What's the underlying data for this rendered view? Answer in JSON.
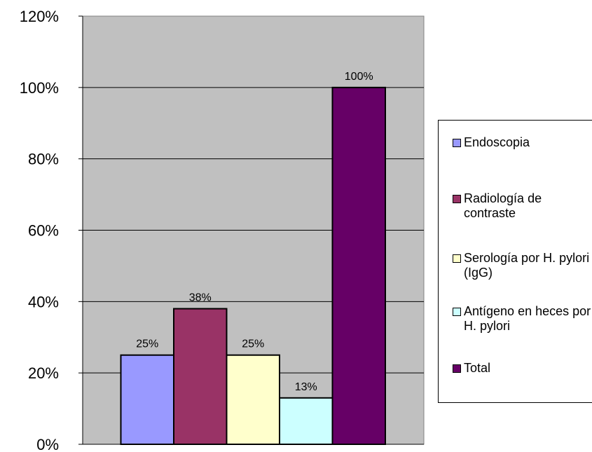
{
  "chart_data": {
    "type": "bar",
    "categories": [
      "Endoscopia",
      "Radiología de contraste",
      "Serología por H. pylori (IgG)",
      "Antígeno en heces por H. pylori",
      "Total"
    ],
    "values": [
      25,
      38,
      25,
      13,
      100
    ],
    "data_labels": [
      "25%",
      "38%",
      "25%",
      "13%",
      "100%"
    ],
    "colors": [
      "#9999ff",
      "#993366",
      "#ffffcc",
      "#ccffff",
      "#660066"
    ],
    "plot_background": "#c0c0c0",
    "ylim": [
      0,
      120
    ],
    "yticks": [
      0,
      20,
      40,
      60,
      80,
      100,
      120
    ],
    "ytick_labels": [
      "0%",
      "20%",
      "40%",
      "60%",
      "80%",
      "100%",
      "120%"
    ],
    "grid": true,
    "legend_position": "right",
    "legend": [
      {
        "label": "Endoscopia",
        "color": "#9999ff"
      },
      {
        "label": "Radiología de contraste",
        "color": "#993366"
      },
      {
        "label": "Serología por H. pylori (IgG)",
        "color": "#ffffcc"
      },
      {
        "label": "Antígeno en heces por H. pylori",
        "color": "#ccffff"
      },
      {
        "label": "Total",
        "color": "#660066"
      }
    ]
  }
}
